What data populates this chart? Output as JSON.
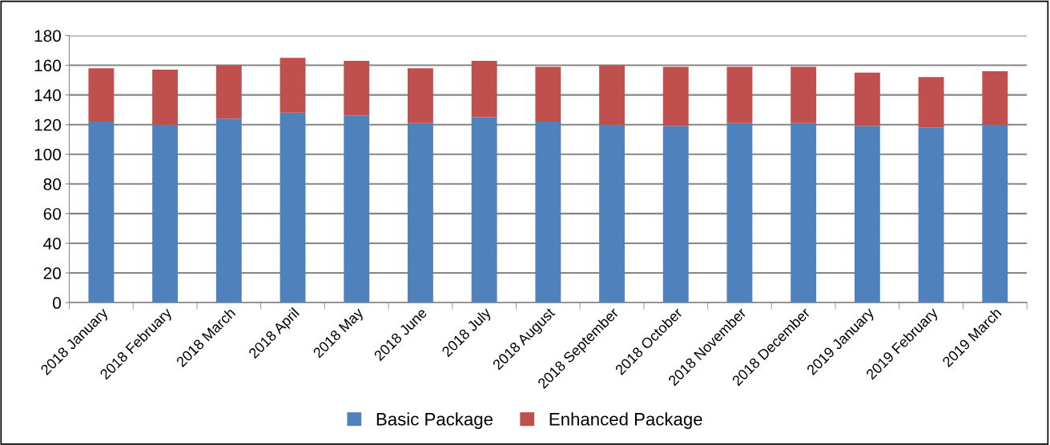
{
  "chart_data": {
    "type": "bar",
    "stacked": true,
    "categories": [
      "2018 January",
      "2018 February",
      "2018 March",
      "2018 April",
      "2018 May",
      "2018 June",
      "2018 July",
      "2018 August",
      "2018 September",
      "2018 October",
      "2018 November",
      "2018 December",
      "2019 January",
      "2019 February",
      "2019 March"
    ],
    "series": [
      {
        "name": "Basic Package",
        "color": "#4f81bd",
        "values": [
          122,
          120,
          124,
          128,
          126,
          121,
          125,
          122,
          120,
          119,
          121,
          121,
          119,
          118,
          120
        ]
      },
      {
        "name": "Enhanced Package",
        "color": "#c0504d",
        "values": [
          36,
          37,
          36,
          37,
          37,
          37,
          38,
          37,
          40,
          40,
          38,
          38,
          36,
          34,
          36
        ]
      }
    ],
    "ylim": [
      0,
      180
    ],
    "yticks": [
      0,
      20,
      40,
      60,
      80,
      100,
      120,
      140,
      160,
      180
    ],
    "grid": "y",
    "legend": "bottom"
  }
}
